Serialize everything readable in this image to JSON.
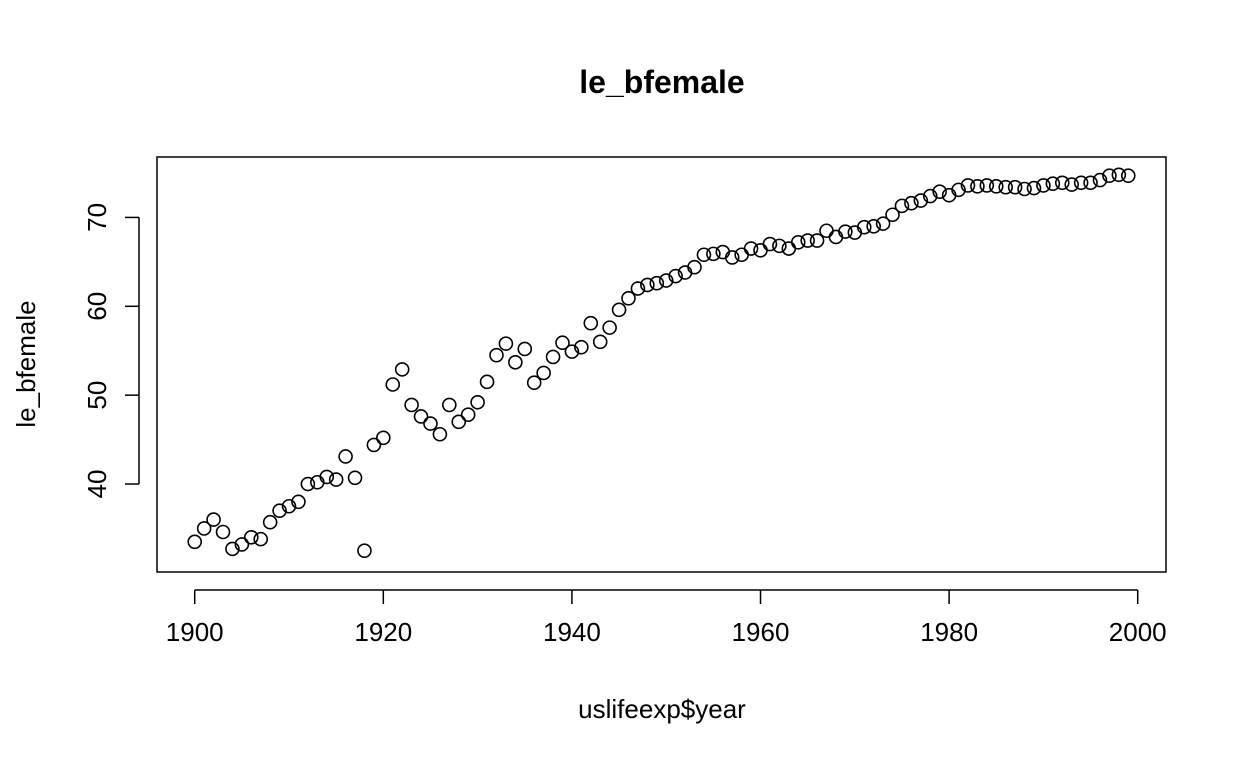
{
  "chart_data": {
    "type": "scatter",
    "title": "le_bfemale",
    "xlabel": "uslifeexp$year",
    "ylabel": "le_bfemale",
    "xlim": [
      1896,
      2003
    ],
    "ylim": [
      30.1,
      76.8
    ],
    "x_ticks": [
      1900,
      1920,
      1940,
      1960,
      1980,
      2000
    ],
    "y_ticks": [
      40,
      50,
      60,
      70
    ],
    "grid": false,
    "legend": "none",
    "marker": "open-circle",
    "colors": {
      "point_stroke": "#000000",
      "axis": "#000000",
      "background": "#ffffff"
    },
    "x": [
      1900,
      1901,
      1902,
      1903,
      1904,
      1905,
      1906,
      1907,
      1908,
      1909,
      1910,
      1911,
      1912,
      1913,
      1914,
      1915,
      1916,
      1917,
      1918,
      1919,
      1920,
      1921,
      1922,
      1923,
      1924,
      1925,
      1926,
      1927,
      1928,
      1929,
      1930,
      1931,
      1932,
      1933,
      1934,
      1935,
      1936,
      1937,
      1938,
      1939,
      1940,
      1941,
      1942,
      1943,
      1944,
      1945,
      1946,
      1947,
      1948,
      1949,
      1950,
      1951,
      1952,
      1953,
      1954,
      1955,
      1956,
      1957,
      1958,
      1959,
      1960,
      1961,
      1962,
      1963,
      1964,
      1965,
      1966,
      1967,
      1968,
      1969,
      1970,
      1971,
      1972,
      1973,
      1974,
      1975,
      1976,
      1977,
      1978,
      1979,
      1980,
      1981,
      1982,
      1983,
      1984,
      1985,
      1986,
      1987,
      1988,
      1989,
      1990,
      1991,
      1992,
      1993,
      1994,
      1995,
      1996,
      1997,
      1998,
      1999
    ],
    "y": [
      33.5,
      35.0,
      36.0,
      34.6,
      32.7,
      33.2,
      34.0,
      33.8,
      35.7,
      37.0,
      37.5,
      38.0,
      40.0,
      40.2,
      40.8,
      40.5,
      43.1,
      40.7,
      32.5,
      44.4,
      45.2,
      51.2,
      52.9,
      48.9,
      47.6,
      46.8,
      45.6,
      48.9,
      47.0,
      47.8,
      49.2,
      51.5,
      54.5,
      55.8,
      53.7,
      55.2,
      51.4,
      52.5,
      54.3,
      55.9,
      54.9,
      55.4,
      58.1,
      56.0,
      57.6,
      59.6,
      60.9,
      62.0,
      62.4,
      62.6,
      62.9,
      63.4,
      63.8,
      64.4,
      65.8,
      65.9,
      66.1,
      65.5,
      65.8,
      66.5,
      66.3,
      67.0,
      66.8,
      66.5,
      67.2,
      67.4,
      67.4,
      68.5,
      67.8,
      68.4,
      68.3,
      68.9,
      69.0,
      69.3,
      70.3,
      71.3,
      71.6,
      71.9,
      72.4,
      72.9,
      72.5,
      73.1,
      73.6,
      73.5,
      73.6,
      73.5,
      73.4,
      73.4,
      73.2,
      73.3,
      73.6,
      73.8,
      73.9,
      73.7,
      73.9,
      73.9,
      74.2,
      74.7,
      74.8,
      74.7
    ]
  }
}
